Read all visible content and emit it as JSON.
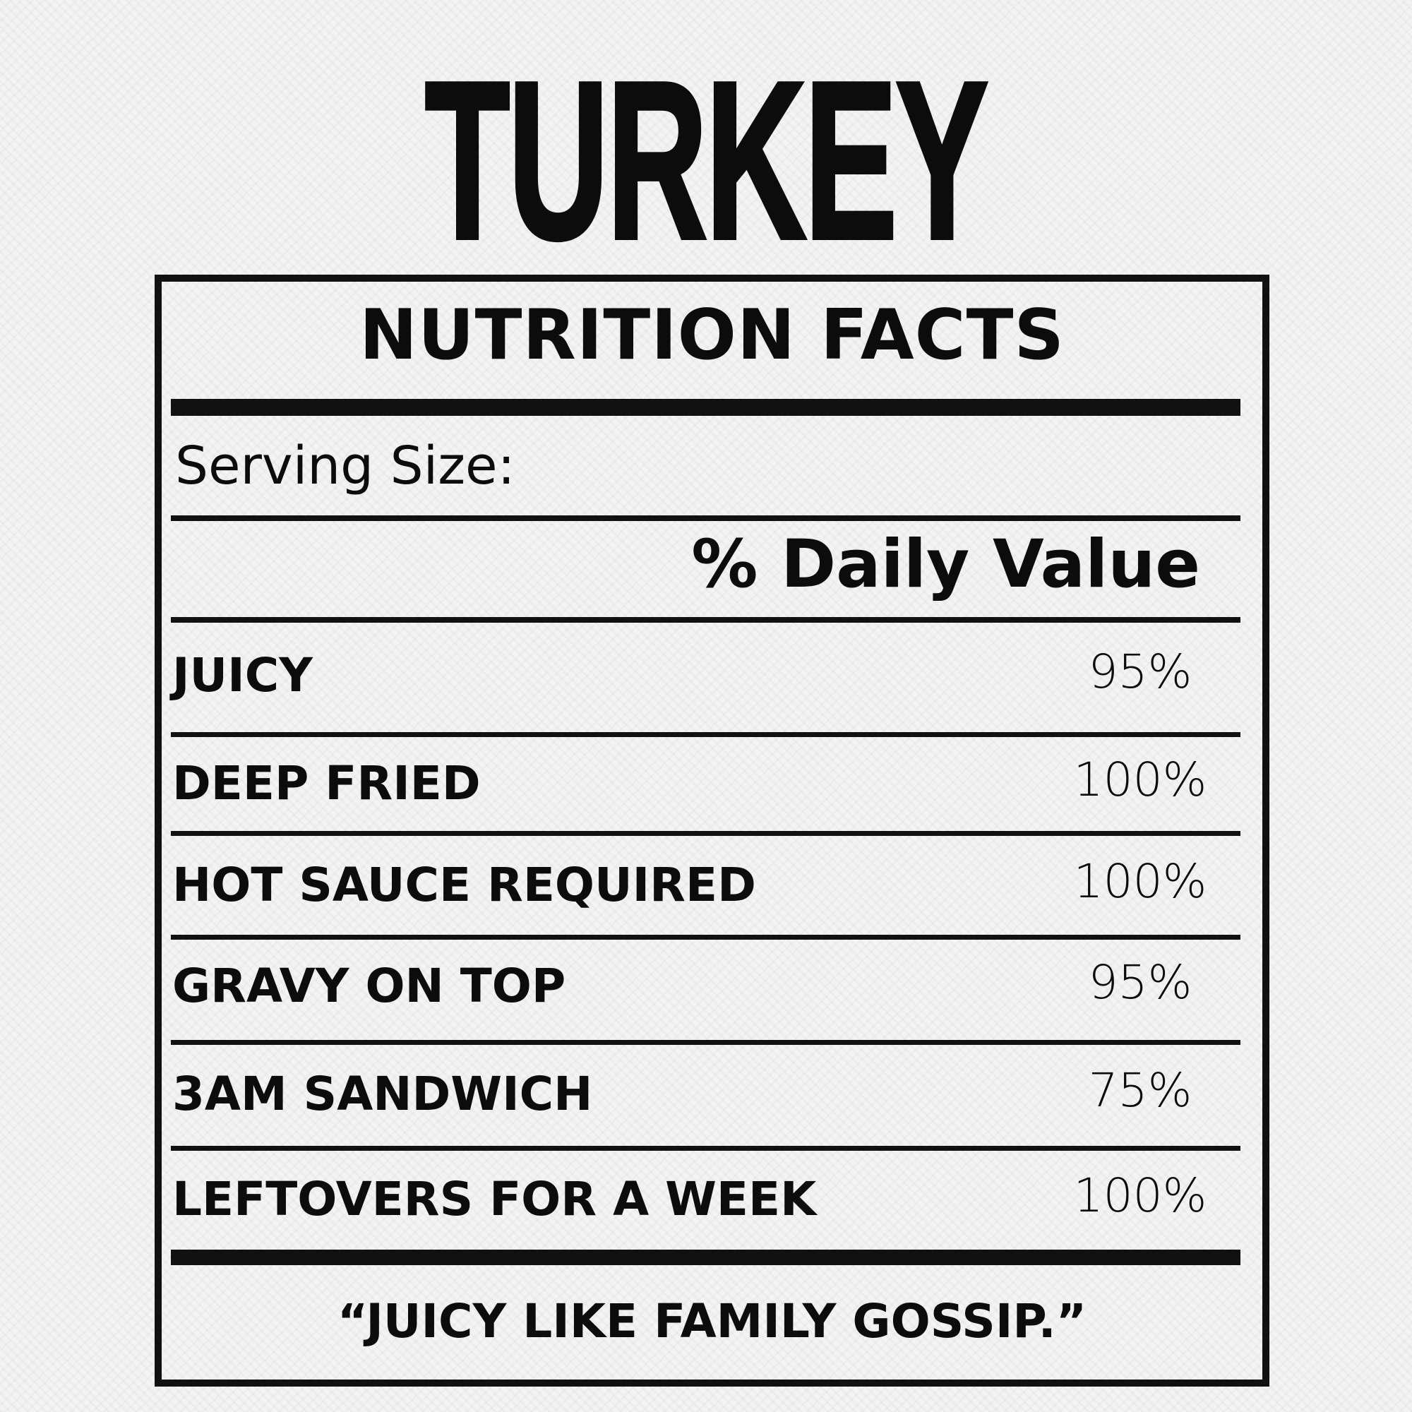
{
  "title": "TURKEY",
  "label": {
    "heading": "NUTRITION FACTS",
    "serving_size": "Serving Size:",
    "daily_value_header": "% Daily Value",
    "rows": [
      {
        "name": "JUICY",
        "value": "95%"
      },
      {
        "name": "DEEP FRIED",
        "value": "100%"
      },
      {
        "name": "HOT SAUCE REQUIRED",
        "value": "100%"
      },
      {
        "name": "GRAVY ON TOP",
        "value": "95%"
      },
      {
        "name": "3AM SANDWICH",
        "value": "75%"
      },
      {
        "name": "LEFTOVERS FOR A WEEK",
        "value": "100%"
      }
    ],
    "quote": "“JUICY LIKE FAMILY GOSSIP.”"
  },
  "colors": {
    "ink": "#0c0c0c",
    "background": "#f3f3f3"
  }
}
